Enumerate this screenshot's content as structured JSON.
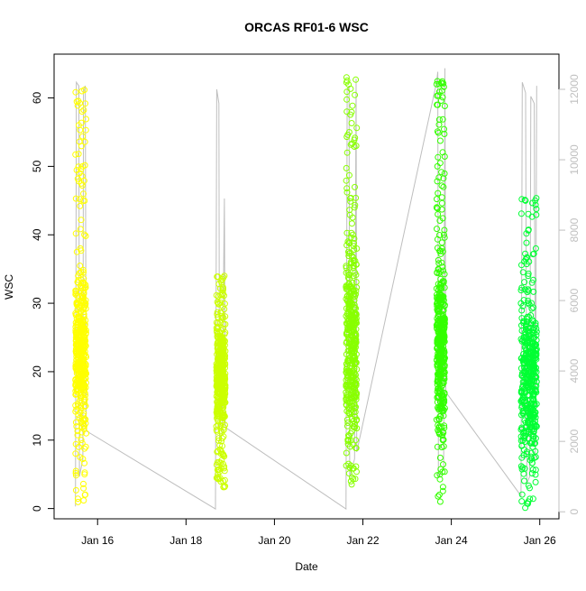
{
  "chart_data": {
    "type": "scatter",
    "title": "ORCAS RF01-6 WSC",
    "xlabel": "Date",
    "ylabel": "WSC",
    "xlim": [
      "2016-01-15 00:24",
      "2016-01-26 10:25"
    ],
    "ylim": [
      -1.5,
      66.4
    ],
    "ylim_right": [
      -200,
      13000
    ],
    "x_ticks": [
      "Jan 16",
      "Jan 18",
      "Jan 20",
      "Jan 22",
      "Jan 24",
      "Jan 26"
    ],
    "x_tick_values": [
      "2016-01-16",
      "2016-01-18",
      "2016-01-20",
      "2016-01-22",
      "2016-01-24",
      "2016-01-26"
    ],
    "y_ticks": [
      0,
      10,
      20,
      30,
      40,
      50,
      60
    ],
    "y_ticks_right": [
      0,
      2000,
      4000,
      6000,
      8000,
      10000,
      12000
    ],
    "grid": false,
    "legend": "none",
    "colors": {
      "altitude_line": "#bebebe",
      "flight_1": "#ffff00",
      "flight_2": "#ccff00",
      "flight_3": "#88ff00",
      "flight_4": "#33ff00",
      "flight_5": "#00ff33"
    },
    "series": [
      {
        "color": "#ffff00",
        "axis": "left",
        "x_range": [
          "2016-01-15 12:00",
          "2016-01-15 17:50"
        ],
        "y_range": [
          0.5,
          61.5
        ],
        "core_y_range": [
          8,
          38
        ],
        "points": [
          [
            0.0,
            18
          ],
          [
            0.05,
            25
          ],
          [
            0.1,
            12
          ],
          [
            0.15,
            30
          ],
          [
            0.2,
            22
          ],
          [
            0.25,
            34
          ],
          [
            0.3,
            9
          ],
          [
            0.35,
            28
          ],
          [
            0.4,
            20
          ],
          [
            0.45,
            38
          ],
          [
            0.5,
            15
          ],
          [
            0.55,
            27
          ],
          [
            0.6,
            61
          ],
          [
            0.62,
            58
          ],
          [
            0.65,
            50
          ],
          [
            0.7,
            45
          ],
          [
            0.72,
            33
          ],
          [
            0.75,
            21
          ],
          [
            0.8,
            12
          ],
          [
            0.85,
            5
          ],
          [
            0.88,
            2
          ],
          [
            0.9,
            16
          ],
          [
            0.95,
            19
          ],
          [
            1.0,
            11
          ]
        ]
      },
      {
        "color": "#ccff00",
        "axis": "left",
        "x_range": [
          "2016-01-18 16:30",
          "2016-01-18 21:20"
        ],
        "y_range": [
          3,
          34
        ],
        "core_y_range": [
          8,
          30
        ],
        "points": [
          [
            0.0,
            12
          ],
          [
            0.08,
            20
          ],
          [
            0.15,
            28
          ],
          [
            0.22,
            31
          ],
          [
            0.3,
            16
          ],
          [
            0.38,
            24
          ],
          [
            0.45,
            19
          ],
          [
            0.52,
            14
          ],
          [
            0.6,
            26
          ],
          [
            0.68,
            8
          ],
          [
            0.75,
            4
          ],
          [
            0.82,
            22
          ],
          [
            0.9,
            34
          ],
          [
            1.0,
            18
          ]
        ]
      },
      {
        "color": "#88ff00",
        "axis": "left",
        "x_range": [
          "2016-01-21 14:50",
          "2016-01-21 20:40"
        ],
        "y_range": [
          3,
          63.5
        ],
        "core_y_range": [
          5,
          44
        ],
        "points": [
          [
            0.0,
            17
          ],
          [
            0.05,
            63
          ],
          [
            0.08,
            58
          ],
          [
            0.12,
            52
          ],
          [
            0.18,
            39
          ],
          [
            0.25,
            10
          ],
          [
            0.3,
            31
          ],
          [
            0.35,
            6
          ],
          [
            0.4,
            24
          ],
          [
            0.45,
            36
          ],
          [
            0.5,
            15
          ],
          [
            0.55,
            30
          ],
          [
            0.6,
            20
          ],
          [
            0.65,
            40
          ],
          [
            0.7,
            12
          ],
          [
            0.75,
            28
          ],
          [
            0.8,
            44
          ],
          [
            0.85,
            22
          ],
          [
            0.9,
            10
          ],
          [
            0.95,
            18
          ],
          [
            1.0,
            13
          ]
        ]
      },
      {
        "color": "#33ff00",
        "axis": "left",
        "x_range": [
          "2016-01-23 16:00",
          "2016-01-23 20:30"
        ],
        "y_range": [
          1,
          63
        ],
        "core_y_range": [
          8,
          40
        ],
        "points": [
          [
            0.0,
            62
          ],
          [
            0.05,
            59
          ],
          [
            0.1,
            50
          ],
          [
            0.15,
            43
          ],
          [
            0.2,
            35
          ],
          [
            0.25,
            28
          ],
          [
            0.3,
            20
          ],
          [
            0.35,
            12
          ],
          [
            0.4,
            5
          ],
          [
            0.45,
            1
          ],
          [
            0.5,
            15
          ],
          [
            0.55,
            30
          ],
          [
            0.6,
            24
          ],
          [
            0.65,
            38
          ],
          [
            0.7,
            18
          ],
          [
            0.75,
            10
          ],
          [
            0.8,
            26
          ],
          [
            0.85,
            33
          ],
          [
            0.9,
            40
          ],
          [
            1.0,
            22
          ]
        ]
      },
      {
        "color": "#00ff33",
        "axis": "left",
        "x_range": [
          "2016-01-25 13:50",
          "2016-01-25 22:20"
        ],
        "y_range": [
          0,
          45.5
        ],
        "core_y_range": [
          3,
          34
        ],
        "points": [
          [
            0.0,
            30
          ],
          [
            0.05,
            22
          ],
          [
            0.1,
            6
          ],
          [
            0.15,
            11
          ],
          [
            0.2,
            25
          ],
          [
            0.25,
            32
          ],
          [
            0.3,
            18
          ],
          [
            0.35,
            8
          ],
          [
            0.4,
            28
          ],
          [
            0.45,
            34
          ],
          [
            0.5,
            14
          ],
          [
            0.55,
            3
          ],
          [
            0.6,
            20
          ],
          [
            0.65,
            27
          ],
          [
            0.7,
            33
          ],
          [
            0.75,
            9
          ],
          [
            0.8,
            16
          ],
          [
            0.85,
            25
          ],
          [
            0.9,
            45
          ],
          [
            0.95,
            38
          ],
          [
            1.0,
            12
          ]
        ]
      }
    ],
    "altitude_series": {
      "color": "#bebebe",
      "axis": "right",
      "points": [
        [
          "2016-01-15 12:00",
          150
        ],
        [
          "2016-01-15 12:30",
          12200
        ],
        [
          "2016-01-15 13:50",
          12100
        ],
        [
          "2016-01-15 14:10",
          1000
        ],
        [
          "2016-01-15 16:00",
          1500
        ],
        [
          "2016-01-15 16:20",
          12000
        ],
        [
          "2016-01-15 17:20",
          12100
        ],
        [
          "2016-01-15 17:50",
          2300
        ],
        [
          "2016-01-18 16:00",
          80
        ],
        [
          "2016-01-18 16:40",
          12000
        ],
        [
          "2016-01-18 17:50",
          11600
        ],
        [
          "2016-01-18 18:10",
          2000
        ],
        [
          "2016-01-18 19:30",
          2200
        ],
        [
          "2016-01-18 20:50",
          8900
        ],
        [
          "2016-01-18 21:20",
          2400
        ],
        [
          "2016-01-21 14:50",
          80
        ],
        [
          "2016-01-21 15:30",
          12000
        ],
        [
          "2016-01-21 16:30",
          12100
        ],
        [
          "2016-01-21 16:50",
          1000
        ],
        [
          "2016-01-21 19:30",
          1500
        ],
        [
          "2016-01-21 20:20",
          12300
        ],
        [
          "2016-01-21 20:40",
          1700
        ],
        [
          "2016-01-23 16:00",
          12200
        ],
        [
          "2016-01-23 16:40",
          12500
        ],
        [
          "2016-01-23 17:00",
          1000
        ],
        [
          "2016-01-23 19:50",
          1200
        ],
        [
          "2016-01-23 20:30",
          12600
        ],
        [
          "2016-01-23 21:00",
          3400
        ],
        [
          "2016-01-25 13:50",
          450
        ],
        [
          "2016-01-25 14:30",
          12200
        ],
        [
          "2016-01-25 16:20",
          11900
        ],
        [
          "2016-01-25 17:00",
          800
        ],
        [
          "2016-01-25 18:30",
          1000
        ],
        [
          "2016-01-25 19:10",
          11800
        ],
        [
          "2016-01-25 21:00",
          11600
        ],
        [
          "2016-01-25 21:40",
          1500
        ],
        [
          "2016-01-25 22:20",
          12100
        ]
      ]
    }
  }
}
